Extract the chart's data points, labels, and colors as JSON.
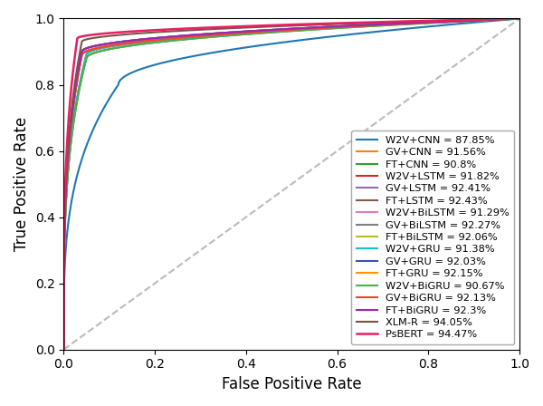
{
  "title": "",
  "xlabel": "False Positive Rate",
  "ylabel": "True Positive Rate",
  "models": [
    {
      "label": "W2V+CNN = 87.85%",
      "auc": 0.8785,
      "tpr_at_thresh": 0.8,
      "fpr_at_thresh": 0.12,
      "color": "#1f77b4",
      "lw": 1.5
    },
    {
      "label": "GV+CNN = 91.56%",
      "auc": 0.9156,
      "tpr_at_thresh": 0.89,
      "fpr_at_thresh": 0.05,
      "color": "#ff7f0e",
      "lw": 1.5
    },
    {
      "label": "FT+CNN = 90.8%",
      "auc": 0.908,
      "tpr_at_thresh": 0.88,
      "fpr_at_thresh": 0.05,
      "color": "#2ca02c",
      "lw": 1.5
    },
    {
      "label": "W2V+LSTM = 91.82%",
      "auc": 0.9182,
      "tpr_at_thresh": 0.89,
      "fpr_at_thresh": 0.04,
      "color": "#d62728",
      "lw": 1.5
    },
    {
      "label": "GV+LSTM = 92.41%",
      "auc": 0.9241,
      "tpr_at_thresh": 0.9,
      "fpr_at_thresh": 0.04,
      "color": "#9467bd",
      "lw": 1.5
    },
    {
      "label": "FT+LSTM = 92.43%",
      "auc": 0.9243,
      "tpr_at_thresh": 0.9,
      "fpr_at_thresh": 0.04,
      "color": "#8c564b",
      "lw": 1.5
    },
    {
      "label": "W2V+BiLSTM = 91.29%",
      "auc": 0.9129,
      "tpr_at_thresh": 0.89,
      "fpr_at_thresh": 0.05,
      "color": "#e377c2",
      "lw": 1.5
    },
    {
      "label": "GV+BiLSTM = 92.27%",
      "auc": 0.9227,
      "tpr_at_thresh": 0.9,
      "fpr_at_thresh": 0.04,
      "color": "#7f7f7f",
      "lw": 1.5
    },
    {
      "label": "FT+BiLSTM = 92.06%",
      "auc": 0.9206,
      "tpr_at_thresh": 0.89,
      "fpr_at_thresh": 0.04,
      "color": "#bcbd22",
      "lw": 1.5
    },
    {
      "label": "W2V+GRU = 91.38%",
      "auc": 0.9138,
      "tpr_at_thresh": 0.89,
      "fpr_at_thresh": 0.05,
      "color": "#17becf",
      "lw": 1.5
    },
    {
      "label": "GV+GRU = 92.03%",
      "auc": 0.9203,
      "tpr_at_thresh": 0.89,
      "fpr_at_thresh": 0.04,
      "color": "#3f51b5",
      "lw": 1.5
    },
    {
      "label": "FT+GRU = 92.15%",
      "auc": 0.9215,
      "tpr_at_thresh": 0.89,
      "fpr_at_thresh": 0.04,
      "color": "#ff9800",
      "lw": 1.5
    },
    {
      "label": "W2V+BiGRU = 90.67%",
      "auc": 0.9067,
      "tpr_at_thresh": 0.88,
      "fpr_at_thresh": 0.05,
      "color": "#4caf50",
      "lw": 1.5
    },
    {
      "label": "GV+BiGRU = 92.13%",
      "auc": 0.9213,
      "tpr_at_thresh": 0.89,
      "fpr_at_thresh": 0.04,
      "color": "#f44336",
      "lw": 1.5
    },
    {
      "label": "FT+BiGRU = 92.3%",
      "auc": 0.923,
      "tpr_at_thresh": 0.9,
      "fpr_at_thresh": 0.04,
      "color": "#9c27b0",
      "lw": 1.5
    },
    {
      "label": "XLM-R = 94.05%",
      "auc": 0.9405,
      "tpr_at_thresh": 0.93,
      "fpr_at_thresh": 0.04,
      "color": "#795548",
      "lw": 1.5
    },
    {
      "label": "PsBERT = 94.47%",
      "auc": 0.9447,
      "tpr_at_thresh": 0.94,
      "fpr_at_thresh": 0.03,
      "color": "#e91e63",
      "lw": 1.8
    }
  ],
  "diag_color": "#bbbbbb",
  "xlim": [
    0.0,
    1.0
  ],
  "ylim": [
    0.0,
    1.0
  ],
  "legend_fontsize": 8.2,
  "axis_fontsize": 12
}
